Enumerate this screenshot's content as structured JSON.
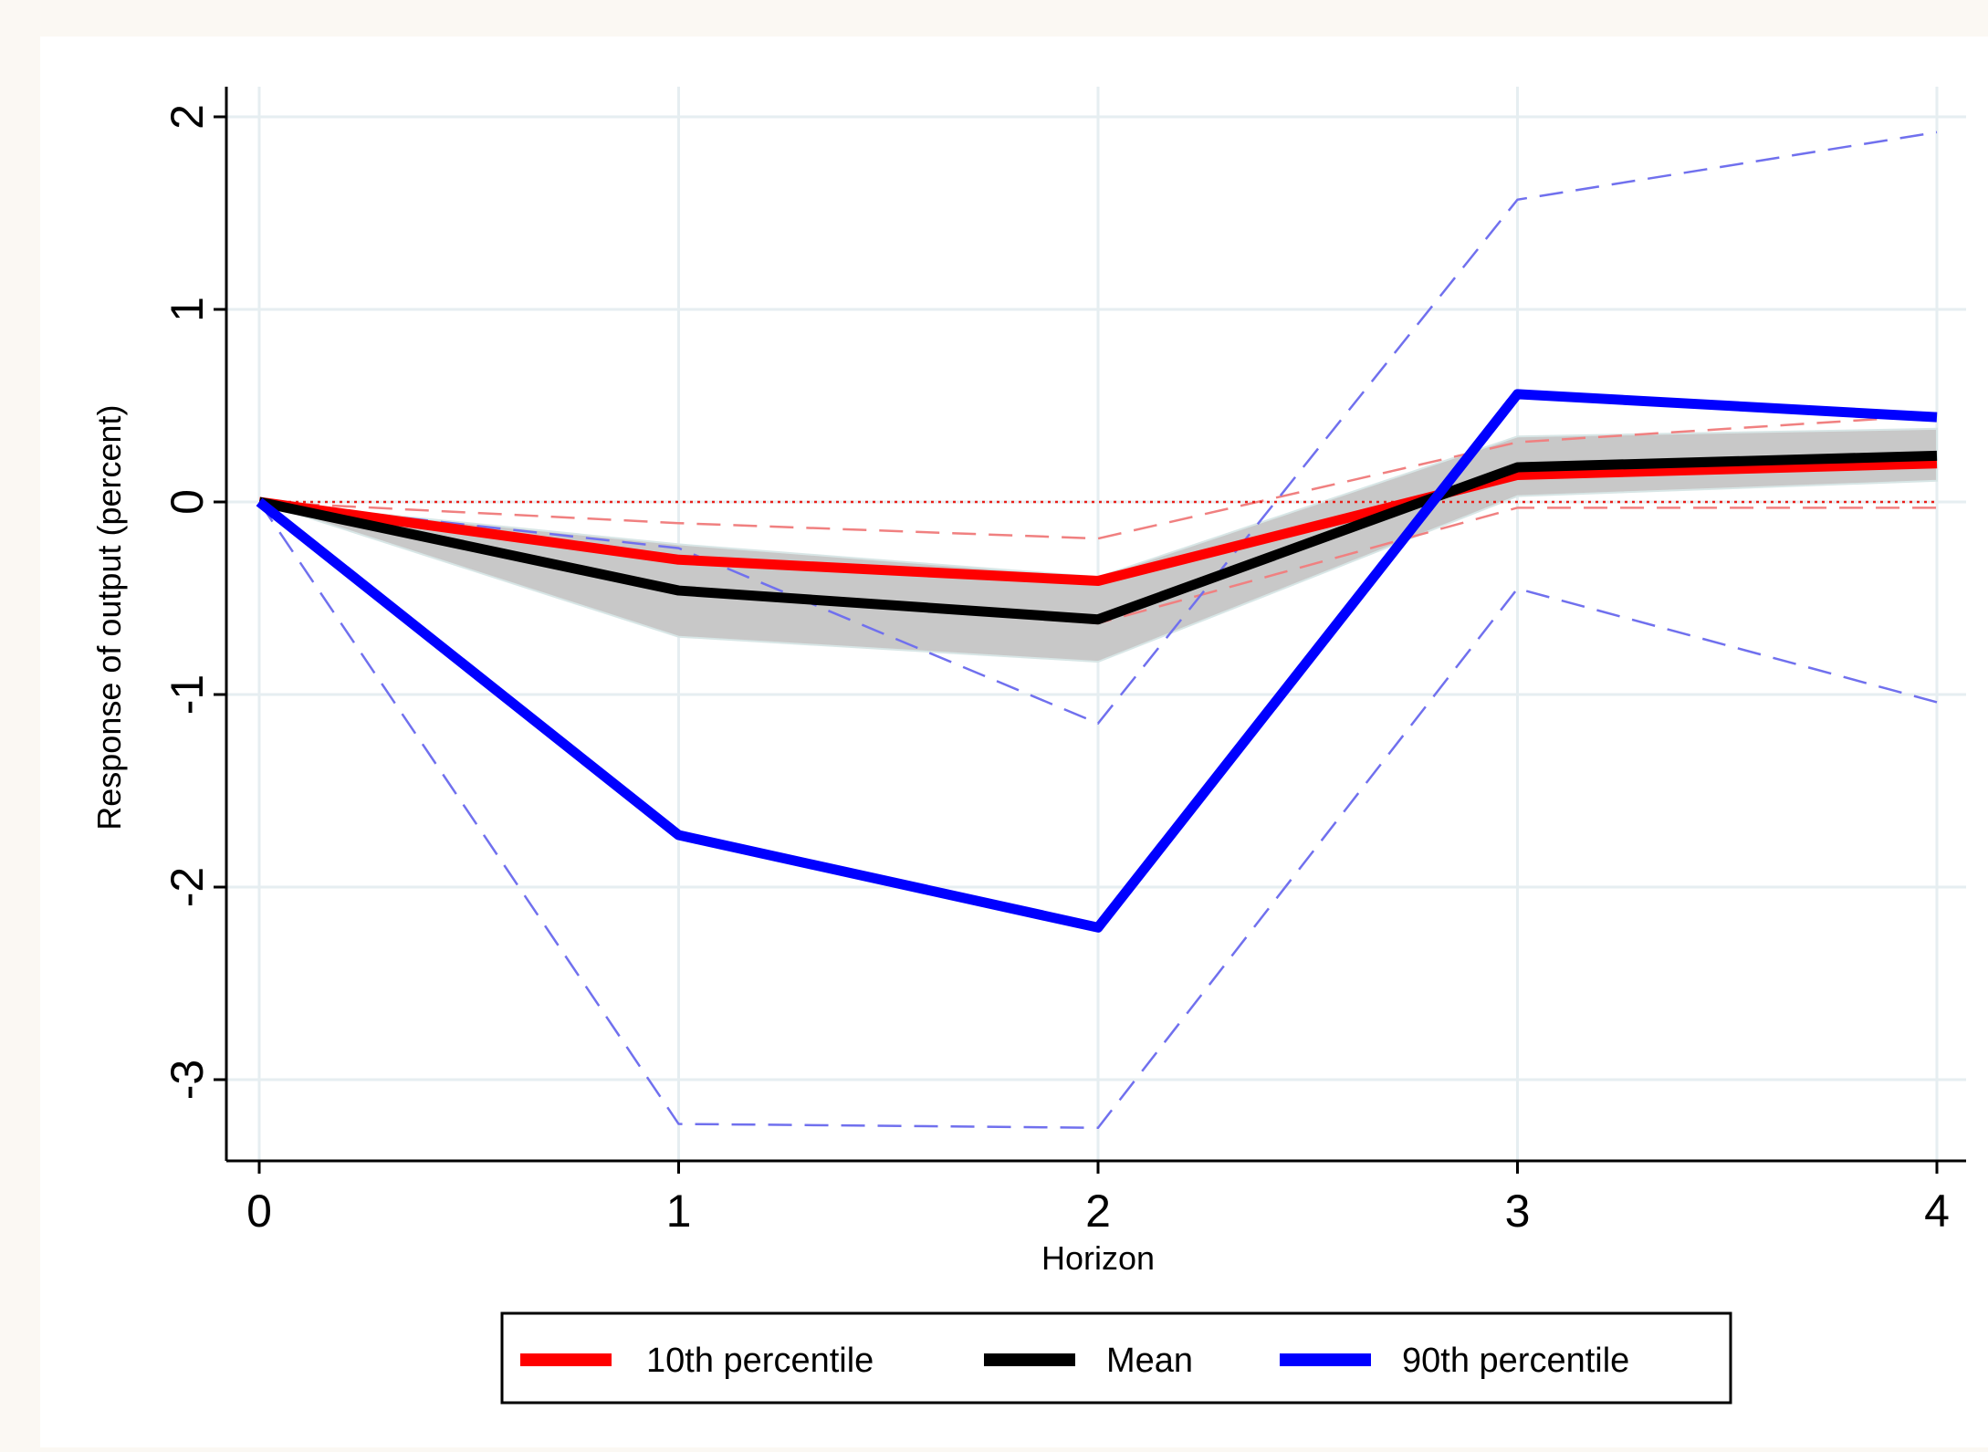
{
  "chart_data": {
    "type": "line",
    "xlabel": "Horizon",
    "ylabel": "Response of output (percent)",
    "x": [
      0,
      1,
      2,
      3,
      4
    ],
    "xlim": [
      -0.08,
      4.08
    ],
    "ylim": [
      -3.42,
      2.17
    ],
    "xticks": [
      "0",
      "1",
      "2",
      "3",
      "4"
    ],
    "yticks": [
      "2",
      "1",
      "0",
      "-1",
      "-2",
      "-3"
    ],
    "ytick_values": [
      2,
      1,
      0,
      -1,
      -2,
      -3
    ],
    "grid": true,
    "zero_reference_line": {
      "y": 0,
      "style": "dotted",
      "color": "#e8201a"
    },
    "series": [
      {
        "name": "10th percentile",
        "color": "#ff0000",
        "values": [
          0,
          -0.3,
          -0.41,
          0.14,
          0.2
        ]
      },
      {
        "name": "Mean",
        "color": "#000000",
        "values": [
          0,
          -0.46,
          -0.61,
          0.18,
          0.24
        ]
      },
      {
        "name": "90th percentile",
        "color": "#0000ff",
        "values": [
          0,
          -1.73,
          -2.21,
          0.56,
          0.44
        ]
      }
    ],
    "bands": [
      {
        "for": "Mean",
        "type": "shaded",
        "color": "#c8c8c8",
        "lower": [
          0,
          -0.7,
          -0.83,
          0.03,
          0.11
        ],
        "upper": [
          0,
          -0.22,
          -0.39,
          0.34,
          0.38
        ]
      },
      {
        "for": "10th percentile",
        "type": "dashed",
        "color": "#f08080",
        "lower": [
          0,
          -0.47,
          -0.63,
          -0.03,
          -0.03
        ],
        "upper": [
          0,
          -0.11,
          -0.19,
          0.31,
          0.45
        ]
      },
      {
        "for": "90th percentile",
        "type": "dashed",
        "color": "#7070ee",
        "lower": [
          0,
          -3.23,
          -3.25,
          -0.45,
          -1.04
        ],
        "upper": [
          0,
          -0.24,
          -1.15,
          1.57,
          1.92
        ]
      }
    ],
    "legend": {
      "position": "bottom",
      "entries": [
        "10th percentile",
        "Mean",
        "90th percentile"
      ]
    }
  }
}
